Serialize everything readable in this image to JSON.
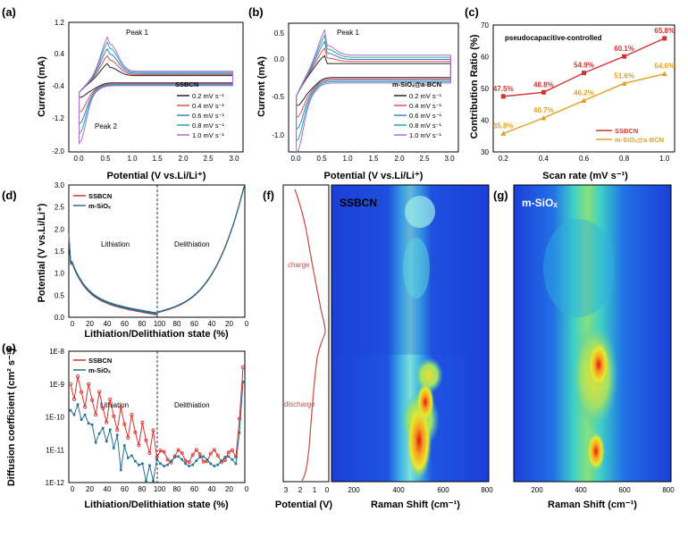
{
  "panels": {
    "a": {
      "label": "(a)",
      "ylabel": "Current (mA)",
      "xlabel": "Potential (V vs.Li/Li⁺)",
      "yticks": [
        "1.2",
        "0.4",
        "-0.4",
        "-1.2",
        "-2.0"
      ],
      "xticks": [
        "0.0",
        "0.5",
        "1.0",
        "1.5",
        "2.0",
        "2.5",
        "3.0"
      ],
      "legend_title": "SSBCN",
      "peak1": "Peak 1",
      "peak2": "Peak 2"
    },
    "b": {
      "label": "(b)",
      "ylabel": "Current (mA)",
      "xlabel": "Potential (V vs.Li/Li⁺)",
      "yticks": [
        "0.5",
        "0.0",
        "-0.5",
        "-1.0"
      ],
      "xticks": [
        "0.0",
        "0.5",
        "1.0",
        "1.5",
        "2.0",
        "2.5",
        "3.0"
      ],
      "legend_title": "m-SiOₓ@a-BCN",
      "peak1": "Peak 1"
    },
    "c": {
      "label": "(c)",
      "ylabel": "Contribution Ratio (%)",
      "xlabel": "Scan rate (mV s⁻¹)",
      "title": "pseudocapacitive-controlled",
      "yticks": [
        "30",
        "40",
        "50",
        "60",
        "70"
      ],
      "xticks": [
        "0.2",
        "0.4",
        "0.6",
        "0.8",
        "1.0"
      ]
    },
    "d": {
      "label": "(d)",
      "ylabel": "Potential (V vs.Li/Li⁺)",
      "xlabel": "Lithiation/Delithiation state (%)",
      "yticks": [
        "0.0",
        "0.5",
        "1.0",
        "1.5",
        "2.0",
        "2.5",
        "3.0"
      ],
      "xticks": [
        "0",
        "20",
        "40",
        "60",
        "80",
        "100",
        "80",
        "60",
        "40",
        "20",
        "0"
      ],
      "region_left": "Lithiation",
      "region_right": "Delithiation",
      "legend": [
        "SSBCN",
        "m-SiOₓ"
      ]
    },
    "e": {
      "label": "(e)",
      "ylabel": "Diffusion coefficient (cm² s⁻¹)",
      "xlabel": "Lithiation/Delithiation state (%)",
      "yticks": [
        "1E-8",
        "1E-9",
        "1E-10",
        "1E-11",
        "1E-12"
      ],
      "xticks": [
        "0",
        "20",
        "40",
        "60",
        "80",
        "100",
        "80",
        "60",
        "40",
        "20",
        "0"
      ],
      "region_left": "Lithiation",
      "region_right": "Delithiation",
      "legend": [
        "SSBCN",
        "m-SiOₓ"
      ]
    },
    "f": {
      "label": "(f)",
      "sample": "SSBCN",
      "xlabel_pot": "Potential (V)",
      "pot_ticks": [
        "3",
        "2",
        "1",
        "0"
      ],
      "xlabel": "Raman Shift (cm⁻¹)",
      "xticks": [
        "200",
        "400",
        "600",
        "800"
      ],
      "charge": "charge",
      "discharge": "discharge"
    },
    "g": {
      "label": "(g)",
      "sample": "m-SiOₓ",
      "xlabel": "Raman Shift (cm⁻¹)",
      "xticks": [
        "200",
        "400",
        "600",
        "800"
      ]
    }
  },
  "colors": {
    "red": "#d2332f",
    "orange": "#e3a020",
    "teal": "#2b6f8a",
    "black": "#222222",
    "cv": [
      "#222222",
      "#e05050",
      "#3a7fcf",
      "#2ba7a0",
      "#b06bd0"
    ]
  },
  "chart_data": [
    {
      "panel": "a",
      "type": "line",
      "title": "",
      "xlabel": "Potential (V vs.Li/Li⁺)",
      "ylabel": "Current (mA)",
      "xlim": [
        -0.2,
        3.2
      ],
      "ylim": [
        -2.0,
        1.6
      ],
      "series": [
        {
          "name": "0.2 mV s⁻¹",
          "anodic_peak": 0.35,
          "cathodic_min": -0.45
        },
        {
          "name": "0.4 mV s⁻¹",
          "anodic_peak": 0.55,
          "cathodic_min": -0.85
        },
        {
          "name": "0.6 mV s⁻¹",
          "anodic_peak": 0.72,
          "cathodic_min": -1.15
        },
        {
          "name": "0.8 mV s⁻¹",
          "anodic_peak": 0.88,
          "cathodic_min": -1.4
        },
        {
          "name": "1.0 mV s⁻¹",
          "anodic_peak": 1.0,
          "cathodic_min": -1.65
        }
      ]
    },
    {
      "panel": "b",
      "type": "line",
      "title": "",
      "xlabel": "Potential (V vs.Li/Li⁺)",
      "ylabel": "Current (mA)",
      "xlim": [
        -0.15,
        3.15
      ],
      "ylim": [
        -1.15,
        0.7
      ],
      "series": [
        {
          "name": "0.2 mV s⁻¹",
          "anodic_peak": 0.12,
          "cathodic_min": -0.45
        },
        {
          "name": "0.4 mV s⁻¹",
          "anodic_peak": 0.2,
          "cathodic_min": -0.6
        },
        {
          "name": "0.6 mV s⁻¹",
          "anodic_peak": 0.27,
          "cathodic_min": -0.75
        },
        {
          "name": "0.8 mV s⁻¹",
          "anodic_peak": 0.33,
          "cathodic_min": -0.9
        },
        {
          "name": "1.0 mV s⁻¹",
          "anodic_peak": 0.38,
          "cathodic_min": -1.05
        }
      ]
    },
    {
      "panel": "c",
      "type": "line",
      "title": "pseudocapacitive-controlled",
      "xlabel": "Scan rate (mV s⁻¹)",
      "ylabel": "Contribution Ratio (%)",
      "xlim": [
        0.15,
        1.05
      ],
      "ylim": [
        30,
        70
      ],
      "x": [
        0.2,
        0.4,
        0.6,
        0.8,
        1.0
      ],
      "series": [
        {
          "name": "SSBCN",
          "values": [
            47.5,
            48.8,
            54.9,
            60.1,
            65.8
          ],
          "labels": [
            "47.5%",
            "48.8%",
            "54.9%",
            "60.1%",
            "65.8%"
          ]
        },
        {
          "name": "m-SiOₓ@a-BCN",
          "values": [
            35.8,
            40.7,
            46.2,
            51.6,
            54.6
          ],
          "labels": [
            "35.8%",
            "40.7%",
            "46.2%",
            "51.6%",
            "54.6%"
          ]
        }
      ]
    },
    {
      "panel": "d",
      "type": "line",
      "xlabel": "Lithiation/Delithiation state (%)",
      "ylabel": "Potential (V vs.Li/Li⁺)",
      "ylim": [
        0,
        3.0
      ],
      "series": [
        {
          "name": "SSBCN"
        },
        {
          "name": "m-SiOₓ"
        }
      ]
    },
    {
      "panel": "e",
      "type": "line",
      "xlabel": "Lithiation/Delithiation state (%)",
      "ylabel": "Diffusion coefficient (cm² s⁻¹)",
      "ylim": [
        1e-12,
        1e-08
      ],
      "yscale": "log",
      "series": [
        {
          "name": "SSBCN"
        },
        {
          "name": "m-SiOₓ"
        }
      ]
    },
    {
      "panel": "f",
      "type": "heatmap",
      "xlabel": "Raman Shift (cm⁻¹)",
      "xlim": [
        100,
        800
      ],
      "peak_cm": 500
    },
    {
      "panel": "g",
      "type": "heatmap",
      "xlabel": "Raman Shift (cm⁻¹)",
      "xlim": [
        100,
        800
      ],
      "peak_cm": 470
    }
  ]
}
